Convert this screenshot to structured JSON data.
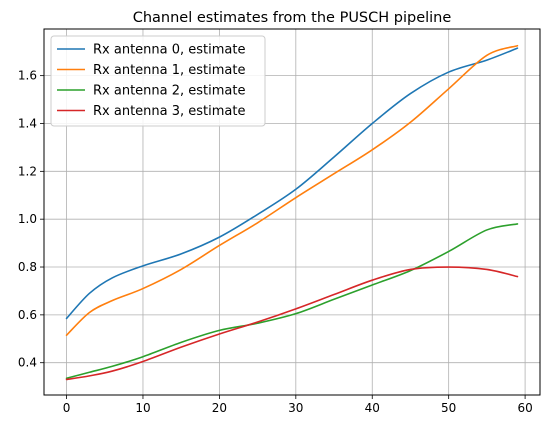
{
  "chart_data": {
    "type": "line",
    "title": "Channel estimates from the PUSCH pipeline",
    "xlabel": "",
    "ylabel": "",
    "xlim": [
      -2.95,
      61.95
    ],
    "ylim": [
      0.265,
      1.795
    ],
    "x_ticks": [
      0,
      10,
      20,
      30,
      40,
      50,
      60
    ],
    "y_ticks": [
      0.4,
      0.6,
      0.8,
      1.0,
      1.2,
      1.4,
      1.6
    ],
    "y_tick_labels": [
      "0.4",
      "0.6",
      "0.8",
      "1.0",
      "1.2",
      "1.4",
      "1.6"
    ],
    "grid": true,
    "legend_position": "upper-left",
    "x": [
      0,
      3,
      6,
      10,
      15,
      20,
      25,
      30,
      35,
      40,
      45,
      50,
      55,
      59
    ],
    "series": [
      {
        "name": "Rx antenna 0, estimate",
        "color": "#1f77b4",
        "values": [
          0.585,
          0.69,
          0.755,
          0.805,
          0.855,
          0.925,
          1.02,
          1.125,
          1.26,
          1.4,
          1.525,
          1.615,
          1.665,
          1.715
        ]
      },
      {
        "name": "Rx antenna 1, estimate",
        "color": "#ff7f0e",
        "values": [
          0.515,
          0.61,
          0.66,
          0.71,
          0.79,
          0.89,
          0.985,
          1.09,
          1.19,
          1.29,
          1.405,
          1.545,
          1.685,
          1.725
        ]
      },
      {
        "name": "Rx antenna 2, estimate",
        "color": "#2ca02c",
        "values": [
          0.335,
          0.36,
          0.385,
          0.425,
          0.485,
          0.535,
          0.565,
          0.605,
          0.665,
          0.725,
          0.785,
          0.865,
          0.955,
          0.98
        ]
      },
      {
        "name": "Rx antenna 3, estimate",
        "color": "#d62728",
        "values": [
          0.33,
          0.345,
          0.365,
          0.405,
          0.465,
          0.52,
          0.57,
          0.625,
          0.685,
          0.745,
          0.79,
          0.8,
          0.79,
          0.76
        ]
      }
    ]
  }
}
